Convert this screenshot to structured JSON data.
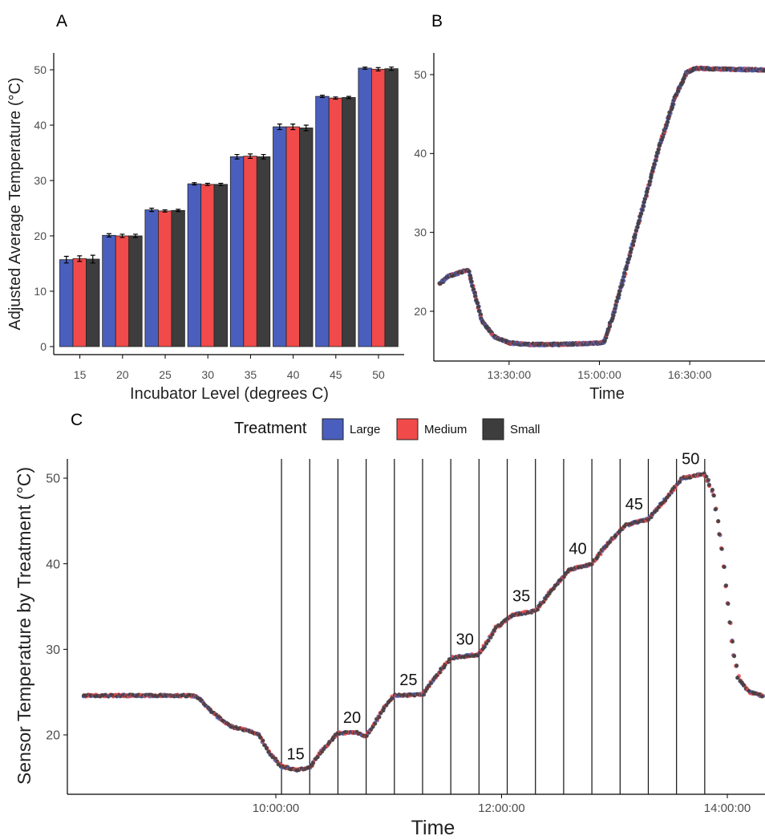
{
  "panels": [
    {
      "label": "A"
    },
    {
      "label": "B"
    },
    {
      "label": "C"
    }
  ],
  "legend": {
    "title": "Treatment",
    "items": [
      {
        "name": "Large",
        "color": "#4a5fbd"
      },
      {
        "name": "Medium",
        "color": "#f04a4a"
      },
      {
        "name": "Small",
        "color": "#3d3d3d"
      }
    ]
  },
  "chart_data": [
    {
      "panel": "A",
      "type": "bar",
      "xlabel": "Incubator Level (degrees C)",
      "ylabel": "Adjusted Average Temperature (°C)",
      "categories": [
        "15",
        "20",
        "25",
        "30",
        "35",
        "40",
        "45",
        "50"
      ],
      "ylim": [
        0,
        52
      ],
      "yticks": [
        0,
        10,
        20,
        30,
        40,
        50
      ],
      "series": [
        {
          "name": "Large",
          "values": [
            15.7,
            20.1,
            24.7,
            29.4,
            34.3,
            39.7,
            45.2,
            50.3
          ],
          "errors": [
            0.6,
            0.3,
            0.3,
            0.2,
            0.4,
            0.5,
            0.2,
            0.2
          ]
        },
        {
          "name": "Medium",
          "values": [
            15.9,
            20.0,
            24.5,
            29.3,
            34.4,
            39.7,
            44.9,
            50.1
          ],
          "errors": [
            0.5,
            0.3,
            0.2,
            0.2,
            0.4,
            0.5,
            0.2,
            0.3
          ]
        },
        {
          "name": "Small",
          "values": [
            15.8,
            20.0,
            24.6,
            29.3,
            34.3,
            39.5,
            45.0,
            50.2
          ],
          "errors": [
            0.7,
            0.3,
            0.2,
            0.2,
            0.4,
            0.5,
            0.2,
            0.3
          ]
        }
      ],
      "legend": "bottom",
      "grid": false
    },
    {
      "panel": "B",
      "type": "scatter",
      "xlabel": "Time",
      "ylabel": "",
      "xticks": [
        "13:30:00",
        "15:00:00",
        "16:30:00"
      ],
      "xlim_hours": [
        12.25,
        17.75
      ],
      "ylim": [
        14,
        53
      ],
      "yticks": [
        20,
        30,
        40,
        50
      ],
      "profile": [
        [
          12.35,
          23.5
        ],
        [
          12.5,
          24.5
        ],
        [
          12.65,
          24.8
        ],
        [
          12.82,
          25.3
        ],
        [
          12.92,
          22.5
        ],
        [
          13.05,
          18.8
        ],
        [
          13.25,
          16.8
        ],
        [
          13.5,
          16.0
        ],
        [
          13.8,
          15.8
        ],
        [
          14.25,
          15.8
        ],
        [
          14.75,
          15.9
        ],
        [
          15.05,
          16.0
        ],
        [
          15.08,
          16.2
        ],
        [
          15.25,
          20.0
        ],
        [
          15.5,
          27.0
        ],
        [
          15.75,
          34.0
        ],
        [
          16.0,
          41.0
        ],
        [
          16.25,
          47.0
        ],
        [
          16.45,
          50.3
        ],
        [
          16.6,
          50.8
        ],
        [
          17.0,
          50.7
        ],
        [
          17.75,
          50.6
        ]
      ],
      "grid": false
    },
    {
      "panel": "C",
      "type": "scatter",
      "xlabel": "Time",
      "ylabel": "Sensor Temperature by Treatment (°C)",
      "xticks": [
        "10:00:00",
        "12:00:00",
        "14:00:00"
      ],
      "xlim_hours": [
        8.0,
        14.33
      ],
      "ylim": [
        14,
        52.5
      ],
      "yticks": [
        20,
        30,
        40,
        50
      ],
      "level_labels": [
        "15",
        "20",
        "25",
        "30",
        "35",
        "40",
        "45",
        "50"
      ],
      "profile": [
        [
          8.3,
          24.6
        ],
        [
          8.8,
          24.6
        ],
        [
          9.2,
          24.6
        ],
        [
          9.3,
          24.5
        ],
        [
          9.45,
          22.5
        ],
        [
          9.6,
          21.0
        ],
        [
          9.8,
          20.3
        ],
        [
          9.85,
          20.0
        ],
        [
          9.95,
          17.8
        ],
        [
          10.05,
          16.3
        ],
        [
          10.2,
          15.9
        ],
        [
          10.3,
          16.2
        ],
        [
          10.4,
          18.0
        ],
        [
          10.55,
          20.2
        ],
        [
          10.7,
          20.3
        ],
        [
          10.8,
          19.8
        ],
        [
          10.95,
          23.0
        ],
        [
          11.05,
          24.6
        ],
        [
          11.3,
          24.7
        ],
        [
          11.4,
          26.5
        ],
        [
          11.55,
          29.0
        ],
        [
          11.8,
          29.4
        ],
        [
          11.95,
          32.5
        ],
        [
          12.1,
          34.0
        ],
        [
          12.3,
          34.5
        ],
        [
          12.45,
          37.0
        ],
        [
          12.6,
          39.3
        ],
        [
          12.8,
          40.0
        ],
        [
          12.95,
          42.5
        ],
        [
          13.1,
          44.5
        ],
        [
          13.3,
          45.2
        ],
        [
          13.45,
          47.5
        ],
        [
          13.6,
          50.0
        ],
        [
          13.8,
          50.5
        ],
        [
          13.88,
          48.0
        ],
        [
          13.95,
          42.0
        ],
        [
          14.0,
          36.0
        ],
        [
          14.05,
          30.0
        ],
        [
          14.1,
          26.5
        ],
        [
          14.2,
          25.0
        ],
        [
          14.3,
          24.6
        ]
      ],
      "grid": false
    }
  ]
}
